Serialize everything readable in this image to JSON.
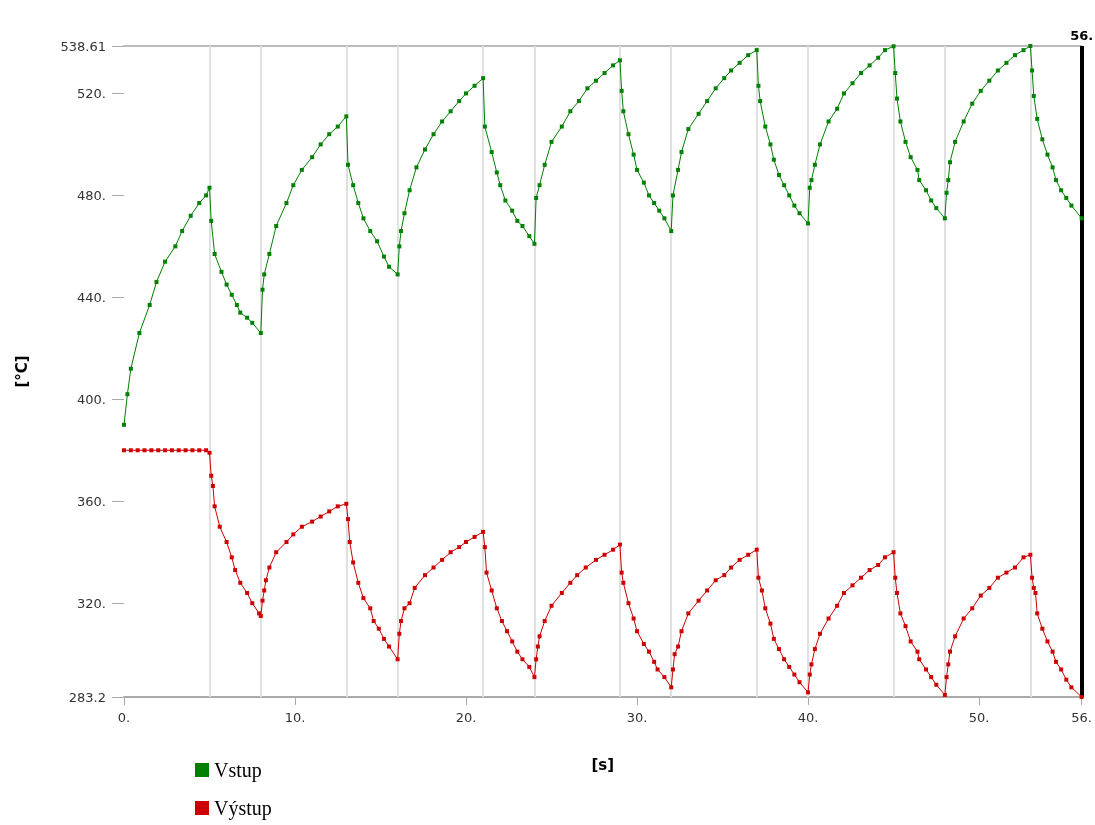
{
  "chart_data": {
    "type": "line",
    "xlabel": "[s]",
    "ylabel": "[°C]",
    "xlim": [
      0,
      56
    ],
    "ylim": [
      283.2,
      538.61
    ],
    "xticks": [
      {
        "value": 0,
        "label": "0."
      },
      {
        "value": 10,
        "label": "10."
      },
      {
        "value": 20,
        "label": "20."
      },
      {
        "value": 30,
        "label": "30."
      },
      {
        "value": 40,
        "label": "40."
      },
      {
        "value": 50,
        "label": "50."
      },
      {
        "value": 56,
        "label": "56."
      }
    ],
    "yticks": [
      283.2,
      {
        "value": 320,
        "label": "320."
      },
      {
        "value": 360,
        "label": "360."
      },
      {
        "value": 400,
        "label": "400."
      },
      {
        "value": 440,
        "label": "440."
      },
      {
        "value": 480,
        "label": "480."
      },
      {
        "value": 520,
        "label": "520."
      },
      538.61
    ],
    "grid": false,
    "legend": "bottom left",
    "marker": "square",
    "line_style": "solid",
    "ref_lines": [
      {
        "axis": "x",
        "value": 5,
        "color": "#e0e0e0"
      },
      {
        "axis": "x",
        "value": 8,
        "color": "#e0e0e0"
      },
      {
        "axis": "x",
        "value": 13,
        "color": "#e0e0e0"
      },
      {
        "axis": "x",
        "value": 16,
        "color": "#e0e0e0"
      },
      {
        "axis": "x",
        "value": 21,
        "color": "#e0e0e0"
      },
      {
        "axis": "x",
        "value": 24,
        "color": "#e0e0e0"
      },
      {
        "axis": "x",
        "value": 29,
        "color": "#e0e0e0"
      },
      {
        "axis": "x",
        "value": 32,
        "color": "#e0e0e0"
      },
      {
        "axis": "x",
        "value": 37,
        "color": "#e0e0e0"
      },
      {
        "axis": "x",
        "value": 40,
        "color": "#e0e0e0"
      },
      {
        "axis": "x",
        "value": 45,
        "color": "#e0e0e0"
      },
      {
        "axis": "x",
        "value": 48,
        "color": "#e0e0e0"
      },
      {
        "axis": "x",
        "value": 53,
        "color": "#e0e0e0"
      },
      {
        "axis": "x",
        "value": 56,
        "label": "56.",
        "color": "#000000"
      }
    ],
    "series": [
      {
        "name": "Vstup",
        "color": "#008000",
        "x": [
          0,
          0.2,
          0.4,
          0.9,
          1.5,
          1.9,
          2.4,
          3,
          3.4,
          3.9,
          4.4,
          4.8,
          5,
          5.1,
          5.3,
          5.7,
          6,
          6.3,
          6.6,
          6.8,
          7.2,
          7.5,
          8,
          8.1,
          8.2,
          8.5,
          8.9,
          9.5,
          9.9,
          10.4,
          11,
          11.5,
          12,
          12.5,
          13,
          13.1,
          13.4,
          13.7,
          14,
          14.4,
          14.8,
          15.2,
          15.5,
          16,
          16.1,
          16.2,
          16.4,
          16.7,
          17.1,
          17.6,
          18.1,
          18.6,
          19.1,
          19.6,
          20,
          20.5,
          21,
          21.1,
          21.5,
          21.8,
          22,
          22.3,
          22.7,
          23,
          23.3,
          23.7,
          24,
          24.1,
          24.3,
          24.6,
          25,
          25.6,
          26.1,
          26.6,
          27.1,
          27.6,
          28.1,
          28.6,
          29,
          29.1,
          29.2,
          29.5,
          29.8,
          30,
          30.4,
          30.7,
          31,
          31.3,
          31.6,
          32,
          32.1,
          32.4,
          32.6,
          33,
          33.6,
          34.1,
          34.6,
          35.1,
          35.5,
          36,
          36.5,
          37,
          37.1,
          37.2,
          37.5,
          37.8,
          38,
          38.3,
          38.6,
          38.9,
          39.2,
          39.5,
          40,
          40.1,
          40.2,
          40.4,
          40.7,
          41.2,
          41.7,
          42.1,
          42.6,
          43.1,
          43.6,
          44.1,
          44.5,
          45,
          45.1,
          45.2,
          45.4,
          45.7,
          46,
          46.4,
          46.5,
          46.9,
          47.2,
          47.5,
          48,
          48.1,
          48.2,
          48.3,
          48.6,
          49.1,
          49.6,
          50.1,
          50.6,
          51.1,
          51.6,
          52.1,
          52.6,
          53,
          53.1,
          53.2,
          53.4,
          53.7,
          54,
          54.3,
          54.5,
          54.8,
          55.1,
          55.4,
          56
        ],
        "values": [
          390,
          402,
          412,
          426,
          437,
          446,
          454,
          460,
          466,
          472,
          477,
          480,
          483,
          470,
          457,
          450,
          445,
          441,
          437,
          434,
          432,
          430,
          426,
          443,
          449,
          457,
          468,
          477,
          484,
          490,
          495,
          500,
          504,
          507,
          511,
          492,
          484,
          477,
          471,
          466,
          462,
          456,
          452,
          449,
          460,
          466,
          473,
          482,
          491,
          498,
          504,
          509,
          513,
          517,
          520,
          523,
          526,
          507,
          497,
          489,
          484,
          478,
          474,
          470,
          468,
          464,
          461,
          479,
          484,
          492,
          501,
          507,
          513,
          517,
          522,
          525,
          528,
          531,
          533,
          521,
          513,
          504,
          496,
          490,
          485,
          480,
          477,
          474,
          471,
          466,
          480,
          490,
          497,
          506,
          512,
          517,
          522,
          526,
          529,
          532,
          535,
          537,
          523,
          517,
          507,
          500,
          494,
          488,
          484,
          480,
          476,
          473,
          469,
          483,
          486,
          492,
          500,
          509,
          514,
          520,
          524,
          528,
          531,
          534,
          537,
          538.5,
          528,
          518,
          509,
          501,
          495,
          490,
          486,
          482,
          478,
          475,
          471,
          481,
          486,
          493,
          501,
          509,
          516,
          521,
          525,
          529,
          532,
          535,
          537,
          538.6,
          529,
          519,
          510,
          502,
          496,
          491,
          486,
          482,
          479,
          476,
          471
        ]
      },
      {
        "name": "Výstup",
        "color": "#cc0000",
        "x": [
          0,
          0.4,
          0.8,
          1.2,
          1.6,
          2,
          2.4,
          2.8,
          3.2,
          3.6,
          4,
          4.4,
          4.8,
          5,
          5.1,
          5.2,
          5.3,
          5.6,
          6,
          6.3,
          6.5,
          6.8,
          7.2,
          7.5,
          7.9,
          8,
          8.1,
          8.2,
          8.3,
          8.5,
          8.9,
          9.5,
          9.9,
          10.4,
          11,
          11.5,
          12,
          12.5,
          13,
          13.1,
          13.2,
          13.4,
          13.7,
          14,
          14.4,
          14.6,
          14.9,
          15.2,
          15.5,
          16,
          16.1,
          16.2,
          16.4,
          16.7,
          17,
          17.6,
          18.1,
          18.6,
          19.1,
          19.6,
          20,
          20.5,
          21,
          21.1,
          21.2,
          21.5,
          21.8,
          22.1,
          22.4,
          22.7,
          23,
          23.3,
          23.7,
          24,
          24.1,
          24.2,
          24.3,
          24.6,
          25,
          25.6,
          26.1,
          26.5,
          27,
          27.6,
          28.1,
          28.6,
          29,
          29.1,
          29.2,
          29.5,
          29.8,
          30,
          30.4,
          30.7,
          31,
          31.2,
          31.6,
          32,
          32.1,
          32.2,
          32.4,
          32.6,
          33,
          33.6,
          34.1,
          34.6,
          35.1,
          35.5,
          36,
          36.5,
          37,
          37.1,
          37.3,
          37.5,
          37.8,
          38,
          38.3,
          38.6,
          38.9,
          39.2,
          39.5,
          40,
          40.1,
          40.2,
          40.4,
          40.7,
          41.2,
          41.7,
          42.1,
          42.6,
          43.1,
          43.6,
          44.1,
          44.5,
          45,
          45.1,
          45.2,
          45.4,
          45.7,
          46,
          46.4,
          46.5,
          46.9,
          47.2,
          47.5,
          48,
          48.1,
          48.2,
          48.3,
          48.6,
          49.1,
          49.6,
          50.1,
          50.6,
          51.1,
          51.6,
          52.1,
          52.6,
          53,
          53.1,
          53.2,
          53.3,
          53.4,
          53.7,
          54,
          54.3,
          54.5,
          54.8,
          55.1,
          55.4,
          56
        ],
        "values": [
          380,
          380,
          380,
          380,
          380,
          380,
          380,
          380,
          380,
          380,
          380,
          380,
          380,
          379,
          370,
          366,
          358,
          350,
          344,
          338,
          333,
          328,
          324,
          320,
          316,
          315,
          321,
          325,
          329,
          334,
          340,
          344,
          347,
          350,
          352,
          354,
          356,
          358,
          359,
          353,
          344,
          336,
          328,
          322,
          318,
          313,
          310,
          306,
          303,
          298,
          308,
          313,
          318,
          320,
          326,
          331,
          334,
          337,
          340,
          342,
          344,
          346,
          348,
          342,
          332,
          325,
          318,
          313,
          309,
          305,
          301,
          298,
          295,
          291,
          298,
          303,
          307,
          313,
          319,
          324,
          328,
          331,
          334,
          337,
          339,
          341,
          343,
          332,
          328,
          320,
          314,
          309,
          304,
          301,
          297,
          294,
          291,
          287,
          294,
          300,
          303,
          309,
          316,
          321,
          325,
          329,
          331,
          334,
          337,
          339,
          341,
          330,
          325,
          318,
          312,
          306,
          302,
          298,
          295,
          292,
          289,
          285,
          292,
          296,
          302,
          308,
          314,
          319,
          324,
          327,
          330,
          333,
          335,
          338,
          340,
          330,
          324,
          316,
          311,
          305,
          301,
          298,
          294,
          291,
          288,
          284,
          291,
          296,
          301,
          307,
          314,
          318,
          323,
          326,
          330,
          332,
          334,
          338,
          339,
          330,
          326,
          324,
          316,
          310,
          305,
          301,
          297,
          294,
          290,
          287,
          283.2
        ]
      }
    ]
  }
}
